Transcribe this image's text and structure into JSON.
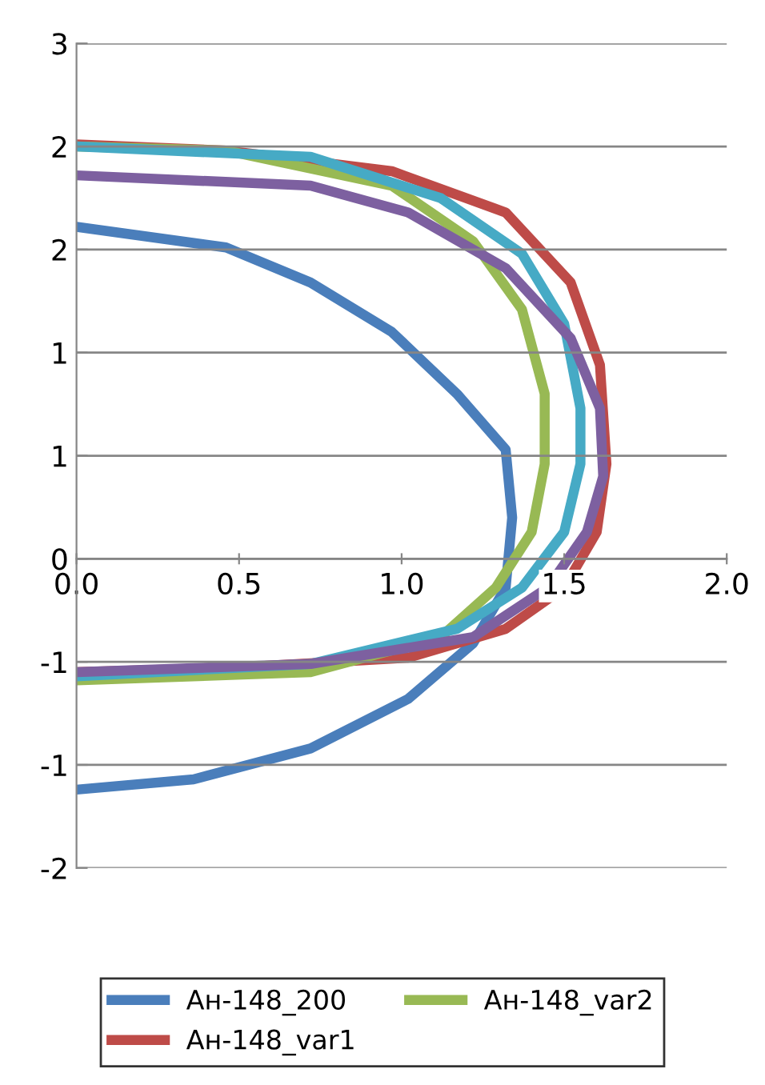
{
  "chart_data": {
    "type": "line",
    "xlim": [
      0,
      2
    ],
    "ylim": [
      -1.5,
      2.5
    ],
    "xticks": [
      {
        "value": 0,
        "label": "0.0"
      },
      {
        "value": 0.5,
        "label": "0.5"
      },
      {
        "value": 1,
        "label": "1.0"
      },
      {
        "value": 1.5,
        "label": "1.5"
      },
      {
        "value": 2,
        "label": "2.0"
      }
    ],
    "yticks": [
      {
        "value": -1.5,
        "label": "-2"
      },
      {
        "value": -1,
        "label": "-1"
      },
      {
        "value": -0.5,
        "label": "-1"
      },
      {
        "value": 0,
        "label": "0"
      },
      {
        "value": 0.5,
        "label": "1"
      },
      {
        "value": 1,
        "label": "1"
      },
      {
        "value": 1.5,
        "label": "2"
      },
      {
        "value": 2,
        "label": "2"
      },
      {
        "value": 2.5,
        "label": "3"
      }
    ],
    "grid": "y",
    "legend": "bottom",
    "marker": "none",
    "line_style": "solid",
    "series": [
      {
        "name": "Ан-148_200",
        "color": "#4a7ebb",
        "x": [
          0,
          0.46,
          0.72,
          0.97,
          1.17,
          1.32,
          1.34,
          1.32,
          1.22,
          1.02,
          0.72,
          0.36,
          0
        ],
        "values": [
          1.61,
          1.51,
          1.34,
          1.1,
          0.8,
          0.53,
          0.2,
          -0.14,
          -0.41,
          -0.68,
          -0.92,
          -1.07,
          -1.12
        ]
      },
      {
        "name": "Ан-148_var1",
        "color": "#be4b48",
        "x": [
          0,
          0.46,
          0.97,
          1.32,
          1.52,
          1.61,
          1.63,
          1.6,
          1.5,
          1.32,
          1.02,
          0.46,
          0
        ],
        "values": [
          2.01,
          1.98,
          1.88,
          1.68,
          1.34,
          0.94,
          0.46,
          0.13,
          -0.14,
          -0.34,
          -0.48,
          -0.53,
          -0.55
        ]
      },
      {
        "name": "Ан-148_var2",
        "color": "#98b954",
        "x": [
          0,
          0.46,
          0.97,
          1.22,
          1.37,
          1.44,
          1.44,
          1.4,
          1.29,
          1.12,
          0.72,
          0
        ],
        "values": [
          2.0,
          1.98,
          1.81,
          1.54,
          1.21,
          0.8,
          0.46,
          0.13,
          -0.14,
          -0.38,
          -0.55,
          -0.59
        ]
      },
      {
        "color": "#46aac5",
        "x": [
          0,
          0.72,
          1.12,
          1.37,
          1.5,
          1.55,
          1.55,
          1.5,
          1.37,
          1.17,
          0.72,
          0
        ],
        "values": [
          2.0,
          1.95,
          1.75,
          1.48,
          1.14,
          0.73,
          0.46,
          0.13,
          -0.14,
          -0.34,
          -0.51,
          -0.57
        ]
      },
      {
        "color": "#7d60a0",
        "x": [
          0,
          0.72,
          1.02,
          1.32,
          1.52,
          1.61,
          1.62,
          1.57,
          1.45,
          1.22,
          0.72,
          0
        ],
        "values": [
          1.86,
          1.81,
          1.68,
          1.41,
          1.07,
          0.73,
          0.4,
          0.13,
          -0.14,
          -0.38,
          -0.51,
          -0.55
        ]
      }
    ]
  }
}
